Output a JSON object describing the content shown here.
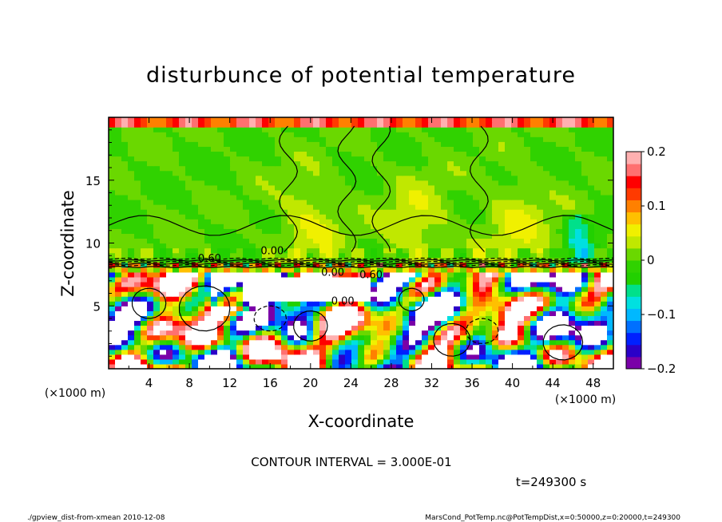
{
  "chart_data": {
    "type": "heatmap",
    "title": "disturbunce of potential temperature",
    "xlabel": "X-coordinate",
    "ylabel": "Z-coordinate",
    "x_unit": "(×1000 m)",
    "y_unit": "(×1000 m)",
    "xlim": [
      0,
      50
    ],
    "ylim": [
      0,
      20
    ],
    "x_ticks": [
      "4",
      "8",
      "12",
      "16",
      "20",
      "24",
      "28",
      "32",
      "36",
      "40",
      "44",
      "48"
    ],
    "x_tick_values": [
      4,
      8,
      12,
      16,
      20,
      24,
      28,
      32,
      36,
      40,
      44,
      48
    ],
    "y_ticks": [
      "5",
      "10",
      "15"
    ],
    "y_tick_values": [
      5,
      10,
      15
    ],
    "colorbar": {
      "range": [
        -0.2,
        0.2
      ],
      "ticks": [
        "0.2",
        "0.1",
        "0",
        "−0.1",
        "−0.2"
      ],
      "tick_values": [
        0.2,
        0.1,
        0,
        -0.1,
        -0.2
      ],
      "colors": [
        "#7a00a8",
        "#2a00c8",
        "#0020ff",
        "#0070ff",
        "#00b8ff",
        "#00e0e0",
        "#00e08a",
        "#22d000",
        "#30d200",
        "#6ad800",
        "#c0e800",
        "#f0f000",
        "#ffc000",
        "#ff8000",
        "#ff3a00",
        "#ff0000",
        "#ff7070",
        "#ffb0b0"
      ]
    },
    "contour_labels": [
      "0.60",
      "0.00",
      "0.00",
      "0.60",
      "0.00"
    ],
    "contour_interval_text": "CONTOUR INTERVAL = 3.000E-01",
    "time_text": "t=249300 s"
  },
  "footer": {
    "left": "./gpview_dist-from-xmean  2010-12-08",
    "right": "MarsCond_PotTemp.nc@PotTempDist,x=0:50000,z=0:20000,t=249300"
  }
}
